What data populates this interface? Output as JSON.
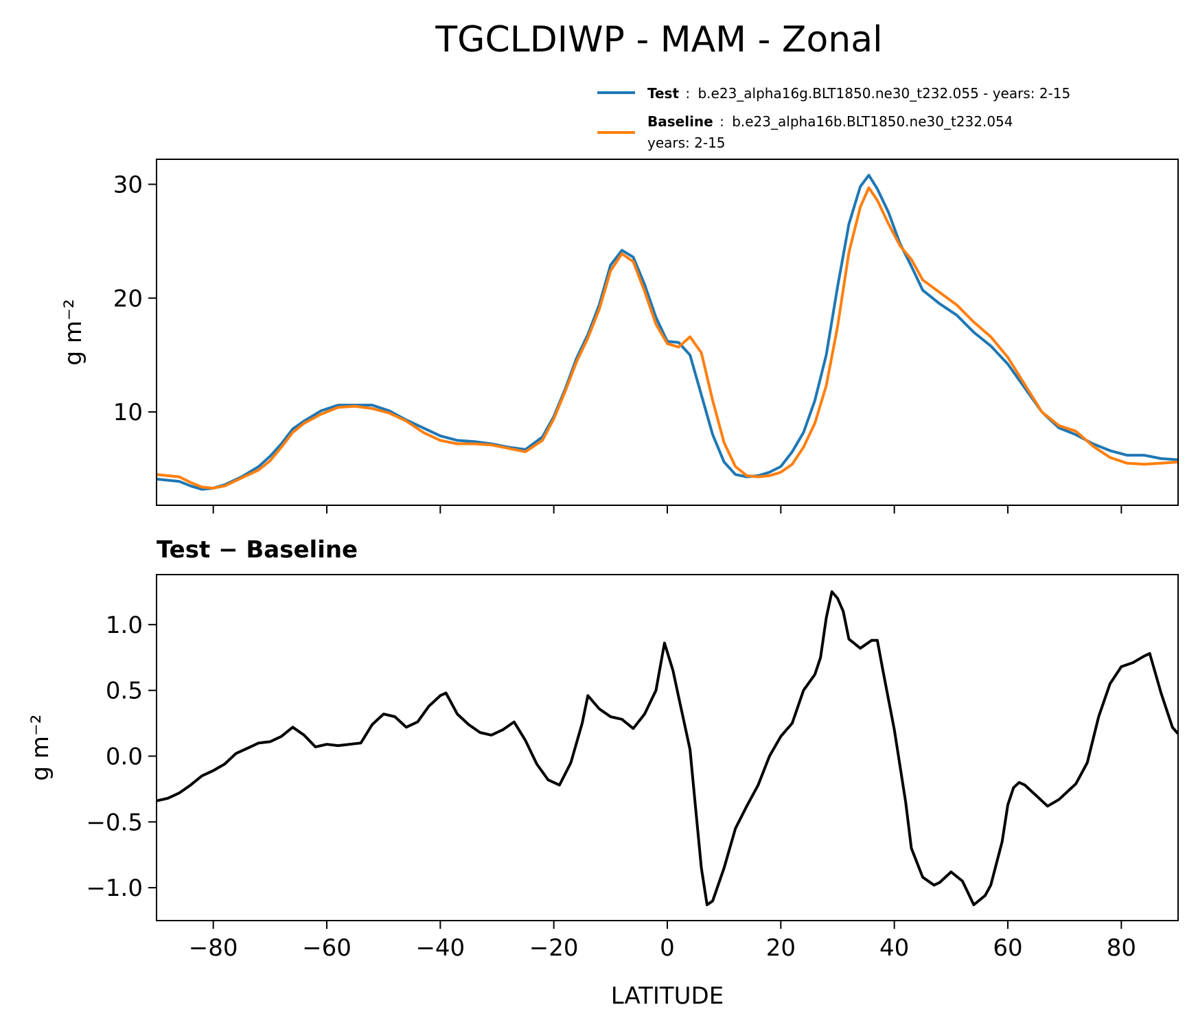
{
  "figure": {
    "title": "TGCLDIWP - MAM - Zonal",
    "legend": {
      "test": {
        "name": "Test",
        "sep": ":",
        "desc": "b.e23_alpha16g.BLT1850.ne30_t232.055 - years: 2-15",
        "color": "#1f77b4"
      },
      "baseline": {
        "name": "Baseline",
        "sep": ":",
        "desc": "b.e23_alpha16b.BLT1850.ne30_t232.054",
        "desc2": "years: 2-15",
        "color": "#ff7f0e"
      }
    },
    "diff_title": "Test − Baseline",
    "xlabel": "LATITUDE"
  },
  "chart_data": [
    {
      "type": "line",
      "title": "TGCLDIWP - MAM - Zonal",
      "xlabel": "",
      "ylabel": "g m⁻²",
      "xlim": [
        -90,
        90
      ],
      "ylim": [
        1.8,
        32.2
      ],
      "yticks": [
        10,
        20,
        30
      ],
      "ytick_labels": [
        "10",
        "20",
        "30"
      ],
      "xticks": [
        -80,
        -60,
        -40,
        -20,
        0,
        20,
        40,
        60,
        80
      ],
      "legend_position": "above-right",
      "x": [
        -90,
        -86,
        -84,
        -82,
        -80,
        -78,
        -75,
        -72,
        -70,
        -68,
        -66,
        -64,
        -61,
        -58,
        -55,
        -52,
        -49,
        -46,
        -43,
        -40,
        -37,
        -34,
        -31,
        -28,
        -25,
        -22,
        -20,
        -18,
        -16,
        -14,
        -12,
        -10,
        -8,
        -6,
        -4,
        -2,
        0,
        2,
        4,
        6,
        8,
        10,
        12,
        14,
        16,
        18,
        20,
        22,
        24,
        26,
        28,
        30,
        32,
        34,
        35.5,
        37,
        39,
        41,
        43,
        45,
        48,
        51,
        54,
        57,
        60,
        63,
        66,
        69,
        72,
        75,
        78,
        81,
        84,
        87,
        90
      ],
      "series": [
        {
          "name": "Test",
          "color": "#1f77b4",
          "values": [
            4.1,
            3.9,
            3.5,
            3.2,
            3.3,
            3.6,
            4.3,
            5.2,
            6.1,
            7.2,
            8.5,
            9.2,
            10.1,
            10.6,
            10.6,
            10.6,
            10.1,
            9.3,
            8.6,
            7.9,
            7.5,
            7.4,
            7.2,
            6.9,
            6.7,
            7.8,
            9.6,
            12.0,
            14.7,
            16.8,
            19.4,
            22.9,
            24.2,
            23.6,
            21.2,
            18.3,
            16.2,
            16.1,
            15.0,
            11.5,
            8.0,
            5.6,
            4.5,
            4.3,
            4.4,
            4.7,
            5.2,
            6.5,
            8.2,
            11.0,
            15.0,
            21.0,
            26.5,
            29.8,
            30.8,
            29.6,
            27.5,
            24.8,
            22.8,
            20.7,
            19.5,
            18.5,
            17.0,
            15.8,
            14.2,
            12.1,
            10.0,
            8.6,
            8.0,
            7.2,
            6.6,
            6.2,
            6.2,
            5.9,
            5.8
          ]
        },
        {
          "name": "Baseline",
          "color": "#ff7f0e",
          "values": [
            4.5,
            4.3,
            3.8,
            3.4,
            3.3,
            3.5,
            4.2,
            4.9,
            5.7,
            6.9,
            8.2,
            9.0,
            9.8,
            10.4,
            10.5,
            10.3,
            9.9,
            9.2,
            8.2,
            7.5,
            7.2,
            7.2,
            7.1,
            6.8,
            6.5,
            7.5,
            9.4,
            11.8,
            14.4,
            16.5,
            19.0,
            22.4,
            23.9,
            23.2,
            20.6,
            17.7,
            16.0,
            15.7,
            16.6,
            15.2,
            11.0,
            7.3,
            5.2,
            4.4,
            4.3,
            4.4,
            4.7,
            5.4,
            6.9,
            9.0,
            12.3,
            17.5,
            24.0,
            28.0,
            29.7,
            28.6,
            26.5,
            24.6,
            23.4,
            21.6,
            20.5,
            19.4,
            17.9,
            16.6,
            14.8,
            12.4,
            10.0,
            8.8,
            8.3,
            7.0,
            6.0,
            5.5,
            5.4,
            5.5,
            5.6
          ]
        }
      ]
    },
    {
      "type": "line",
      "title": "Test − Baseline",
      "xlabel": "LATITUDE",
      "ylabel": "g m⁻²",
      "xlim": [
        -90,
        90
      ],
      "ylim": [
        -1.25,
        1.38
      ],
      "yticks": [
        -1.0,
        -0.5,
        0.0,
        0.5,
        1.0
      ],
      "ytick_labels": [
        "−1.0",
        "−0.5",
        "0.0",
        "0.5",
        "1.0"
      ],
      "xticks": [
        -80,
        -60,
        -40,
        -20,
        0,
        20,
        40,
        60,
        80
      ],
      "xtick_labels": [
        "−80",
        "−60",
        "−40",
        "−20",
        "0",
        "20",
        "40",
        "60",
        "80"
      ],
      "x": [
        -90,
        -88,
        -86,
        -84,
        -82,
        -80,
        -78,
        -76,
        -74,
        -72,
        -70,
        -68,
        -66,
        -64,
        -62,
        -60,
        -58,
        -56,
        -54,
        -52,
        -50,
        -48,
        -46,
        -44,
        -42,
        -40,
        -39,
        -37,
        -35,
        -33,
        -31,
        -29,
        -27,
        -25,
        -23,
        -21,
        -19,
        -17,
        -15,
        -14,
        -12,
        -10,
        -8,
        -6,
        -4,
        -2,
        -0.5,
        1,
        2,
        3,
        4,
        5,
        6,
        7,
        8,
        10,
        12,
        14,
        16,
        18,
        20,
        22,
        24,
        26,
        27,
        28,
        29,
        30,
        31,
        32,
        34,
        36,
        37,
        38,
        40,
        42,
        43,
        45,
        47,
        48,
        50,
        52,
        54,
        56,
        57,
        59,
        60,
        61,
        62,
        63,
        65,
        67,
        69,
        71,
        72,
        74,
        76,
        78,
        80,
        82,
        84,
        85,
        87,
        89,
        90
      ],
      "values": [
        -0.34,
        -0.32,
        -0.28,
        -0.22,
        -0.15,
        -0.11,
        -0.06,
        0.02,
        0.06,
        0.1,
        0.11,
        0.15,
        0.22,
        0.16,
        0.07,
        0.09,
        0.08,
        0.09,
        0.1,
        0.24,
        0.32,
        0.3,
        0.22,
        0.26,
        0.38,
        0.46,
        0.48,
        0.32,
        0.24,
        0.18,
        0.16,
        0.2,
        0.26,
        0.12,
        -0.06,
        -0.18,
        -0.22,
        -0.05,
        0.25,
        0.46,
        0.36,
        0.3,
        0.28,
        0.21,
        0.32,
        0.5,
        0.86,
        0.65,
        0.45,
        0.25,
        0.05,
        -0.4,
        -0.85,
        -1.13,
        -1.1,
        -0.85,
        -0.55,
        -0.38,
        -0.22,
        0.0,
        0.15,
        0.25,
        0.5,
        0.62,
        0.75,
        1.05,
        1.25,
        1.2,
        1.1,
        0.89,
        0.82,
        0.88,
        0.88,
        0.65,
        0.2,
        -0.35,
        -0.7,
        -0.92,
        -0.98,
        -0.96,
        -0.88,
        -0.95,
        -1.13,
        -1.06,
        -0.98,
        -0.65,
        -0.37,
        -0.24,
        -0.2,
        -0.22,
        -0.3,
        -0.38,
        -0.33,
        -0.25,
        -0.21,
        -0.05,
        0.3,
        0.55,
        0.68,
        0.71,
        0.76,
        0.78,
        0.48,
        0.22,
        0.17
      ]
    }
  ]
}
